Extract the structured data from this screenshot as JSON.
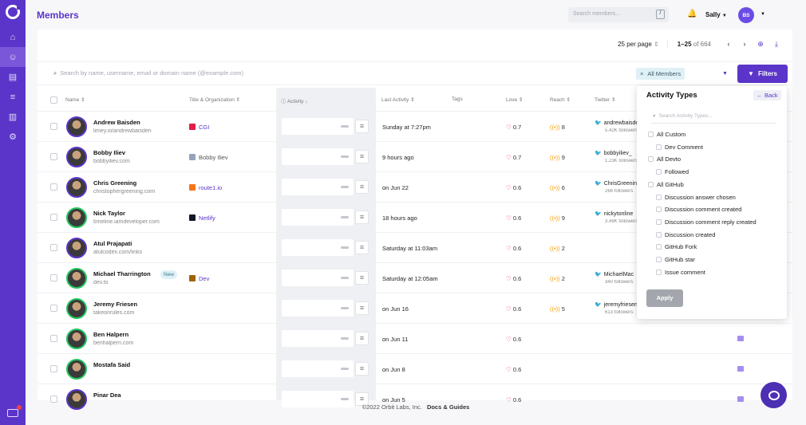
{
  "page": {
    "title": "Members"
  },
  "top": {
    "search_placeholder": "Search members...",
    "search_shortcut": "/",
    "user_name": "Sally",
    "user_initials": "BS"
  },
  "pagination": {
    "per_page": "25 per page",
    "range": "1–25",
    "total": "of 664"
  },
  "filter_bar": {
    "search_placeholder": "Search by name, username, email or domain name (@example.com)",
    "chip_label": "All Members",
    "filters_label": "Filters"
  },
  "columns": {
    "name": "Name",
    "title_org": "Title & Organization",
    "activity": "Activity",
    "last_activity": "Last Activity",
    "tags": "Tags",
    "love": "Love",
    "reach": "Reach",
    "twitter": "Twitter"
  },
  "members": [
    {
      "name": "Andrew Baisden",
      "sub": "limey.io/andrewbaisden",
      "org": "CGI",
      "org_color": "#e11d48",
      "org_link": true,
      "last": "Sunday at 7:27pm",
      "love": "0.7",
      "reach": "8",
      "twitter": "andrewbaisden",
      "followers": "5.42K followers",
      "ring": "purple"
    },
    {
      "name": "Bobby Iliev",
      "sub": "bobbyiliev.com",
      "org": "Bobby Iliev",
      "org_color": "#94a3b8",
      "org_link": false,
      "last": "9 hours ago",
      "love": "0.7",
      "reach": "9",
      "twitter": "bobbyiliev_",
      "followers": "1.23K followers",
      "ring": "purple"
    },
    {
      "name": "Chris Greening",
      "sub": "christophergreening.com",
      "org": "route1.io",
      "org_color": "#f97316",
      "org_link": true,
      "last": "on Jun 22",
      "love": "0.6",
      "reach": "6",
      "twitter": "ChrisGreening",
      "followers": "266 followers",
      "ring": "purple"
    },
    {
      "name": "Nick Taylor",
      "sub": "timeline.iamdeveloper.com",
      "org": "Netlify",
      "org_color": "#111827",
      "org_link": true,
      "last": "18 hours ago",
      "love": "0.6",
      "reach": "9",
      "twitter": "nickytonline",
      "followers": "3.49K followers",
      "ring": "green"
    },
    {
      "name": "Atul Prajapati",
      "sub": "atulcodex.com/links",
      "org": "",
      "org_color": "",
      "org_link": false,
      "last": "Saturday at 11:03am",
      "love": "0.6",
      "reach": "2",
      "twitter": "",
      "followers": "",
      "ring": "purple"
    },
    {
      "name": "Michael Tharrington",
      "sub": "dev.to",
      "badge": "New",
      "org": "Dev",
      "org_color": "#a16207",
      "org_link": true,
      "last": "Saturday at 12:05am",
      "love": "0.6",
      "reach": "2",
      "twitter": "MichaelMac",
      "followers": "340 followers",
      "ring": "green"
    },
    {
      "name": "Jeremy Friesen",
      "sub": "takeonrules.com",
      "org": "",
      "org_color": "",
      "org_link": false,
      "last": "on Jun 16",
      "love": "0.6",
      "reach": "5",
      "twitter": "jeremyfriesen",
      "followers": "613 followers",
      "ring": "green"
    },
    {
      "name": "Ben Halpern",
      "sub": "benhalpern.com",
      "org": "",
      "org_color": "",
      "org_link": false,
      "last": "on Jun 11",
      "love": "0.6",
      "reach": "",
      "twitter": "",
      "followers": "",
      "ring": "green"
    },
    {
      "name": "Mostafa Said",
      "sub": "",
      "org": "",
      "org_color": "",
      "org_link": false,
      "last": "on Jun 8",
      "love": "0.6",
      "reach": "",
      "twitter": "",
      "followers": "",
      "ring": "green"
    },
    {
      "name": "Pinar Dea",
      "sub": "",
      "org": "",
      "org_color": "",
      "org_link": false,
      "last": "on Jun 5",
      "love": "0.6",
      "reach": "",
      "twitter": "",
      "followers": "",
      "ring": "purple"
    }
  ],
  "activity_types": {
    "title": "Activity Types",
    "back_label": "Back",
    "search_placeholder": "Search Activity Types...",
    "items": [
      {
        "label": "All Custom",
        "level": 0
      },
      {
        "label": "Dev Comment",
        "level": 1
      },
      {
        "label": "All Devto",
        "level": 0
      },
      {
        "label": "Followed",
        "level": 1
      },
      {
        "label": "All GitHub",
        "level": 0
      },
      {
        "label": "Discussion answer chosen",
        "level": 1
      },
      {
        "label": "Discussion comment created",
        "level": 1
      },
      {
        "label": "Discussion comment reply created",
        "level": 1
      },
      {
        "label": "Discussion created",
        "level": 1
      },
      {
        "label": "GitHub Fork",
        "level": 1
      },
      {
        "label": "GitHub star",
        "level": 1
      },
      {
        "label": "Issue comment",
        "level": 1
      }
    ],
    "apply_label": "Apply"
  },
  "footer": {
    "copyright": "©2022 Orbit Labs, Inc.",
    "docs_link": "Docs & Guides"
  },
  "colors": {
    "brand": "#5b35c9",
    "love": "#e11d48",
    "reach": "#f59e0b",
    "twitter": "#1da1f2"
  }
}
